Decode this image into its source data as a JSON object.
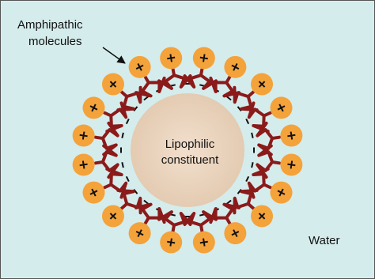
{
  "annotation": {
    "lines": [
      "Amphipathic",
      "molecules"
    ]
  },
  "core": {
    "lines": [
      "Lipophilic",
      "constituent"
    ]
  },
  "medium": "Water"
}
